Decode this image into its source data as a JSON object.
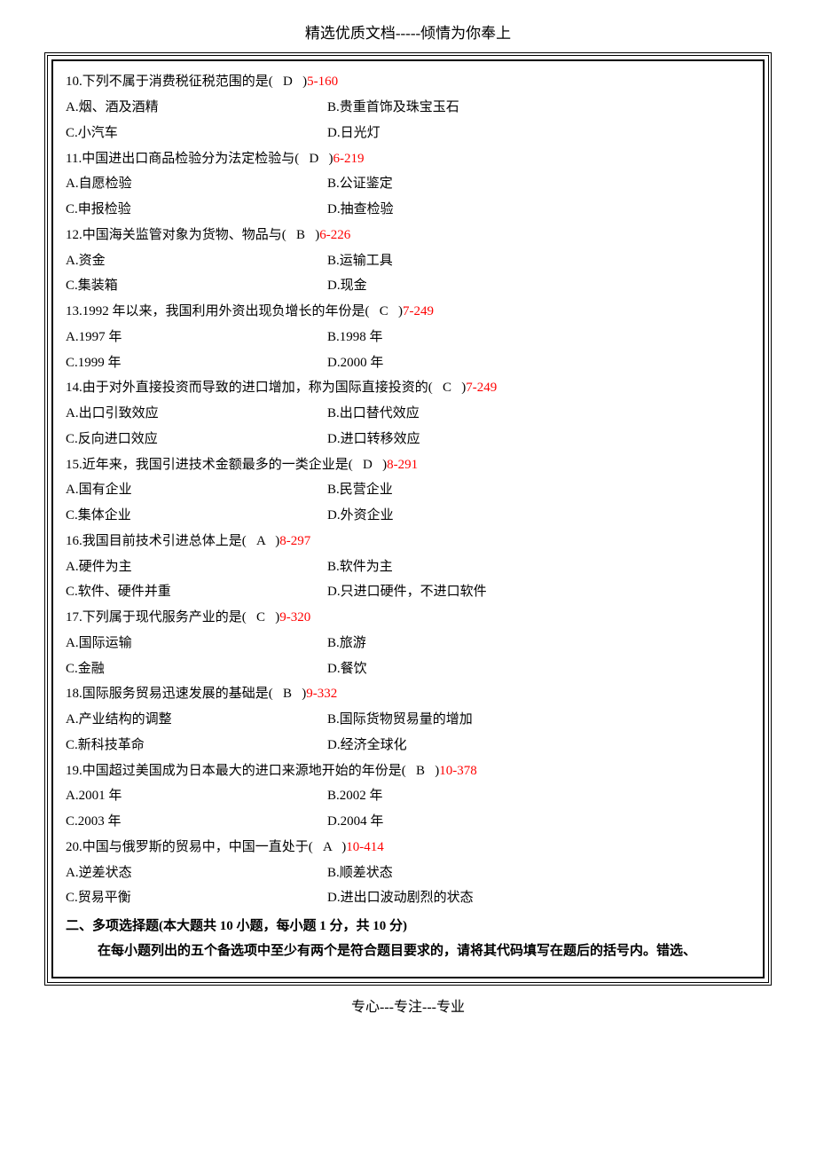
{
  "header": "精选优质文档-----倾情为你奉上",
  "footer": "专心---专注---专业",
  "colors": {
    "ref": "#ff0000",
    "text": "#000000",
    "bg": "#ffffff"
  },
  "questions": [
    {
      "num": "10.",
      "stem": "下列不属于消费税征税范围的是(   D   )",
      "ref": "5-160",
      "opts": [
        [
          "A.烟、酒及酒精",
          "B.贵重首饰及珠宝玉石"
        ],
        [
          "C.小汽车",
          "D.日光灯"
        ]
      ]
    },
    {
      "num": "11.",
      "stem": "中国进出口商品检验分为法定检验与(   D   )",
      "ref": "6-219",
      "opts": [
        [
          "A.自愿检验",
          "B.公证鉴定"
        ],
        [
          "C.申报检验",
          "D.抽查检验"
        ]
      ]
    },
    {
      "num": "12.",
      "stem": "中国海关监管对象为货物、物品与(   B   )",
      "ref": "6-226",
      "opts": [
        [
          "A.资金",
          "B.运输工具"
        ],
        [
          "C.集装箱",
          "D.现金"
        ]
      ]
    },
    {
      "num": "13.",
      "stem": "1992 年以来，我国利用外资出现负增长的年份是(   C   )",
      "ref": "7-249",
      "opts": [
        [
          "A.1997 年",
          "B.1998 年"
        ],
        [
          "C.1999 年",
          "D.2000 年"
        ]
      ]
    },
    {
      "num": "14.",
      "stem": "由于对外直接投资而导致的进口增加，称为国际直接投资的(   C   )",
      "ref": "7-249",
      "opts": [
        [
          "A.出口引致效应",
          "B.出口替代效应"
        ],
        [
          "C.反向进口效应",
          "D.进口转移效应"
        ]
      ]
    },
    {
      "num": "15.",
      "stem": "近年来，我国引进技术金额最多的一类企业是(   D   )",
      "ref": "8-291",
      "opts": [
        [
          "A.国有企业",
          "B.民营企业"
        ],
        [
          "C.集体企业",
          "D.外资企业"
        ]
      ]
    },
    {
      "num": "16.",
      "stem": "我国目前技术引进总体上是(   A   )",
      "ref": "8-297",
      "opts": [
        [
          "A.硬件为主",
          "B.软件为主"
        ],
        [
          "C.软件、硬件并重",
          "D.只进口硬件，不进口软件"
        ]
      ]
    },
    {
      "num": "17.",
      "stem": "下列属于现代服务产业的是(   C   )",
      "ref": "9-320",
      "opts": [
        [
          "A.国际运输",
          "B.旅游"
        ],
        [
          "C.金融",
          "D.餐饮"
        ]
      ]
    },
    {
      "num": "18.",
      "stem": "国际服务贸易迅速发展的基础是(   B   )",
      "ref": "9-332",
      "opts": [
        [
          "A.产业结构的调整",
          "B.国际货物贸易量的增加"
        ],
        [
          "C.新科技革命",
          "D.经济全球化"
        ]
      ]
    },
    {
      "num": "19.",
      "stem": "中国超过美国成为日本最大的进口来源地开始的年份是(   B   )",
      "ref": "10-378",
      "opts": [
        [
          "A.2001 年",
          "B.2002 年"
        ],
        [
          "C.2003 年",
          "D.2004 年"
        ]
      ]
    },
    {
      "num": "20.",
      "stem": "中国与俄罗斯的贸易中，中国一直处于(   A   )",
      "ref": "10-414",
      "opts": [
        [
          "A.逆差状态",
          "B.顺差状态"
        ],
        [
          "C.贸易平衡",
          "D.进出口波动剧烈的状态"
        ]
      ]
    }
  ],
  "section2": {
    "title": "二、多项选择题(本大题共 10 小题，每小题 1 分，共 10 分)",
    "note": "在每小题列出的五个备选项中至少有两个是符合题目要求的，请将其代码填写在题后的括号内。错选、"
  }
}
